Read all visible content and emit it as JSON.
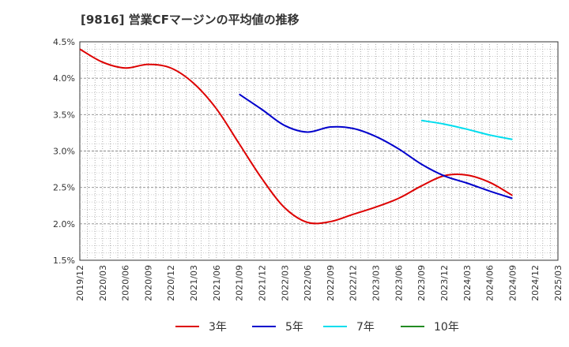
{
  "chart_data": {
    "type": "line",
    "title": "[9816]  営業CFマージンの平均値の推移",
    "xlabel": "",
    "ylabel": "",
    "ylim": [
      1.5,
      4.5
    ],
    "yticks": [
      "1.5%",
      "2.0%",
      "2.5%",
      "3.0%",
      "3.5%",
      "4.0%",
      "4.5%"
    ],
    "categories": [
      "2019/12",
      "2020/03",
      "2020/06",
      "2020/09",
      "2020/12",
      "2021/03",
      "2021/06",
      "2021/09",
      "2021/12",
      "2022/03",
      "2022/06",
      "2022/09",
      "2022/12",
      "2023/03",
      "2023/06",
      "2023/09",
      "2023/12",
      "2024/03",
      "2024/06",
      "2024/09",
      "2024/12",
      "2025/03"
    ],
    "grid": true,
    "legend_position": "bottom",
    "series": [
      {
        "name": "3年",
        "color": "#dd0000",
        "values": [
          4.4,
          4.22,
          4.14,
          4.19,
          4.14,
          3.93,
          3.58,
          3.1,
          2.62,
          2.22,
          2.02,
          2.03,
          2.13,
          2.23,
          2.35,
          2.52,
          2.66,
          2.67,
          2.57,
          2.39,
          null,
          null
        ]
      },
      {
        "name": "5年",
        "color": "#0000cc",
        "values": [
          null,
          null,
          null,
          null,
          null,
          null,
          null,
          3.78,
          3.57,
          3.35,
          3.26,
          3.33,
          3.31,
          3.2,
          3.03,
          2.82,
          2.66,
          2.56,
          2.45,
          2.35,
          null,
          null
        ]
      },
      {
        "name": "7年",
        "color": "#00ddee",
        "values": [
          null,
          null,
          null,
          null,
          null,
          null,
          null,
          null,
          null,
          null,
          null,
          null,
          null,
          null,
          null,
          3.42,
          3.37,
          3.3,
          3.22,
          3.16,
          null,
          null
        ]
      },
      {
        "name": "10年",
        "color": "#228b22",
        "values": [
          null,
          null,
          null,
          null,
          null,
          null,
          null,
          null,
          null,
          null,
          null,
          null,
          null,
          null,
          null,
          null,
          null,
          null,
          null,
          null,
          null,
          null
        ]
      }
    ]
  }
}
